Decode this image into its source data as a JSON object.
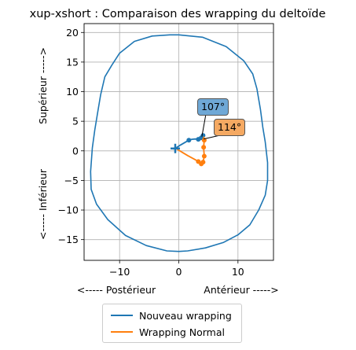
{
  "chart_data": {
    "type": "line",
    "title": "xup-xshort : Comparaison des wrapping du deltoïde",
    "xlabel_left": "<----- Postérieur",
    "xlabel_right": "Antérieur ----->",
    "ylabel_top": "Supérieur ----->",
    "ylabel_bottom": "<----- Inférieur",
    "xlim": [
      -16,
      16
    ],
    "ylim": [
      -18.5,
      21.5
    ],
    "x_ticks": [
      -10,
      0,
      10
    ],
    "x_tick_labels": [
      "−10",
      "0",
      "10"
    ],
    "y_ticks": [
      -15,
      -10,
      -5,
      0,
      5,
      10,
      15,
      20
    ],
    "y_tick_labels": [
      "−15",
      "−10",
      "−5",
      "0",
      "5",
      "10",
      "15",
      "20"
    ],
    "grid": true,
    "legend_placement": "below",
    "outline": {
      "color": "#1f77b4",
      "x": [
        0,
        4,
        8,
        11,
        12.5,
        13.2,
        13.8,
        14.2,
        14.6,
        15.0,
        15.0,
        14.6,
        13.5,
        12.0,
        10.0,
        7.5,
        4.5,
        1.5,
        0,
        -2,
        -5.5,
        -9,
        -12,
        -13.9,
        -14.8,
        -14.9,
        -14.6,
        -14.2,
        -13.7,
        -13.2,
        -12.5,
        -11.3,
        -10,
        -7.5,
        -4.5,
        -1.5,
        0
      ],
      "y": [
        19.6,
        19.2,
        17.6,
        15.2,
        13.0,
        10.5,
        7.0,
        4.0,
        1.5,
        -2.0,
        -5.0,
        -7.5,
        -10.0,
        -12.5,
        -14.2,
        -15.5,
        -16.4,
        -16.9,
        -17.0,
        -16.9,
        -16.0,
        -14.3,
        -11.6,
        -9.0,
        -6.5,
        -3.5,
        0.5,
        3.5,
        6.5,
        9.5,
        12.5,
        14.5,
        16.5,
        18.5,
        19.4,
        19.6,
        19.6
      ]
    },
    "series": [
      {
        "name": "Nouveau wrapping",
        "color": "#1f77b4",
        "x": [
          -1.0,
          -0.3,
          0.3,
          1.0,
          1.7,
          2.2,
          2.8,
          3.3,
          3.8,
          4.1
        ],
        "y": [
          0.3,
          0.6,
          1.0,
          1.4,
          1.8,
          1.95,
          2.0,
          1.95,
          2.2,
          2.6
        ],
        "markers_x": [
          1.7,
          3.3,
          3.8,
          4.1
        ],
        "markers_y": [
          1.8,
          1.95,
          2.2,
          2.6
        ]
      },
      {
        "name": "Wrapping Normal",
        "color": "#ff7f0e",
        "x": [
          -0.3,
          0.5,
          1.5,
          2.6,
          3.3,
          3.8,
          4.1,
          4.3,
          4.2,
          4.3,
          4.2
        ],
        "y": [
          0.3,
          -0.2,
          -0.8,
          -1.4,
          -1.8,
          -2.2,
          -1.9,
          -0.9,
          0.6,
          1.8,
          2.4
        ],
        "markers_x": [
          3.3,
          3.8,
          4.1,
          4.3,
          4.2,
          4.3
        ],
        "markers_y": [
          -1.8,
          -2.2,
          -1.9,
          -0.9,
          0.6,
          1.8
        ]
      }
    ],
    "origin_marker": {
      "x": -0.6,
      "y": 0.4,
      "color": "#1f77b4"
    },
    "annotations": [
      {
        "text": "107°",
        "color": "#6fa8d6",
        "arrow_to_x": 3.9,
        "arrow_to_y": 2.4
      },
      {
        "text": "114°",
        "color": "#f5a962",
        "arrow_to_x": 4.2,
        "arrow_to_y": 2.0
      }
    ]
  }
}
